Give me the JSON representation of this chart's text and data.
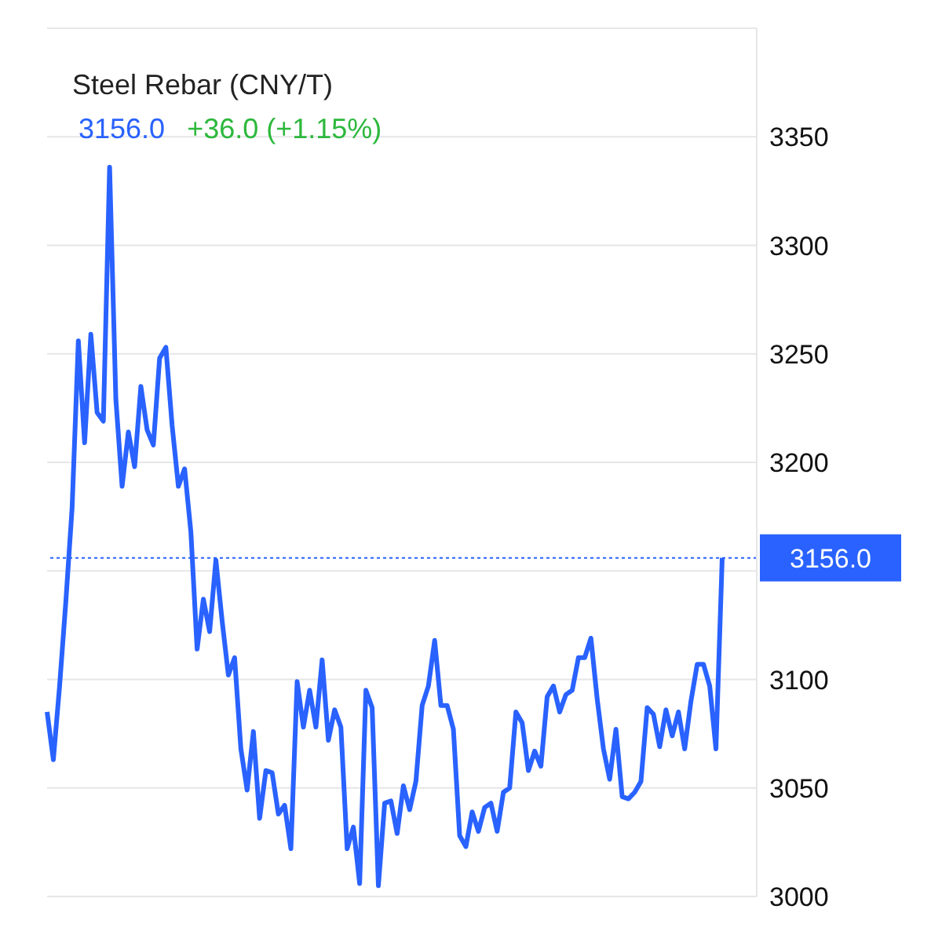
{
  "chart_data": {
    "type": "line",
    "title": "Steel Rebar (CNY/T)",
    "subtitle": "3156.0",
    "annotations": [
      "+36.0 (+1.15%)"
    ],
    "categories": [
      null,
      null,
      null,
      null,
      null,
      null,
      null,
      null,
      null,
      null,
      null,
      null,
      null,
      null,
      null,
      null,
      null,
      null,
      null,
      null,
      null,
      null,
      null,
      null,
      null,
      null,
      null,
      null,
      null,
      null,
      null,
      null,
      null,
      null,
      null,
      null,
      null,
      null,
      null,
      null,
      null,
      null,
      null,
      null,
      null,
      null,
      null,
      null,
      null,
      null,
      null,
      null,
      null,
      null,
      null,
      null,
      null,
      null,
      null,
      null,
      null,
      null,
      null,
      null,
      null,
      null,
      null,
      null,
      null,
      null,
      null,
      null,
      null,
      null,
      null,
      null,
      null,
      null,
      null,
      null,
      null,
      null,
      null,
      null,
      null,
      null,
      null,
      null,
      null,
      null,
      null,
      null,
      null,
      null,
      null,
      null,
      null,
      null,
      null,
      null,
      null,
      null,
      null,
      null,
      null,
      null,
      null,
      null,
      null
    ],
    "series": [
      {
        "color": "#2962ff",
        "values": [
          3085,
          3063,
          3097,
          3136,
          3179,
          3256,
          3209,
          3259,
          3223,
          3219,
          3336,
          3229,
          3189,
          3214,
          3198,
          3235,
          3215,
          3208,
          3248,
          3253,
          3217,
          3189,
          3197,
          3168,
          3114,
          3137,
          3122,
          3155,
          3127,
          3102,
          3110,
          3068,
          3049,
          3076,
          3036,
          3058,
          3057,
          3038,
          3042,
          3022,
          3099,
          3078,
          3095,
          3078,
          3109,
          3072,
          3086,
          3078,
          3022,
          3032,
          3006,
          3095,
          3087,
          3005,
          3043,
          3044,
          3029,
          3051,
          3040,
          3053,
          3088,
          3097,
          3118,
          3088,
          3088,
          3077,
          3028,
          3023,
          3039,
          3030,
          3041,
          3043,
          3030,
          3048,
          3050,
          3085,
          3080,
          3058,
          3067,
          3060,
          3092,
          3097,
          3085,
          3093,
          3095,
          3110,
          3110,
          3119,
          3091,
          3068,
          3054,
          3077,
          3046,
          3045,
          3048,
          3053,
          3087,
          3084,
          3069,
          3086,
          3074,
          3085,
          3068,
          3090,
          3107,
          3107,
          3097,
          3068,
          3156
        ]
      }
    ],
    "ylim": [
      3000,
      3400
    ],
    "yticks": [
      3000,
      3050,
      3100,
      {
        "value": 3150,
        "label": null
      },
      3200,
      3250,
      3300,
      3350
    ],
    "grid": "y",
    "marker": "none",
    "line_style": "solid",
    "legend": false,
    "tick_labels": "y",
    "ref_lines": [
      {
        "axis": "y",
        "value": 3156,
        "label": "3156.0",
        "color": "#2962ff",
        "line_style": "dotted"
      }
    ]
  }
}
